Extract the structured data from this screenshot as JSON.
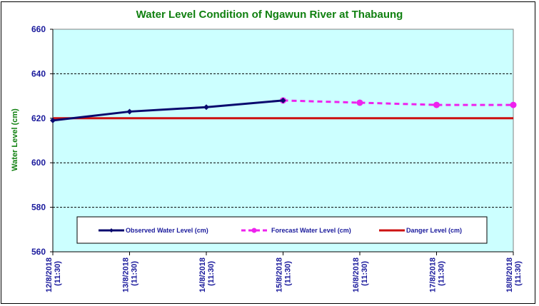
{
  "chart_data": {
    "type": "line",
    "title": "Water Level Condition of Ngawun  River at  Thabaung",
    "xlabel": "",
    "ylabel": "Water Level (cm)",
    "ylim": [
      560,
      660
    ],
    "yticks": [
      560,
      580,
      600,
      620,
      640,
      660
    ],
    "grid": "horizontal dashed",
    "x": [
      [
        "12/8/2018",
        "(11:30)"
      ],
      [
        "13/8/2018",
        "(11:30)"
      ],
      [
        "14/8/2018",
        "(11:30)"
      ],
      [
        "15/8/2018",
        "(11:30)"
      ],
      [
        "16/8/2018",
        "(11:30)"
      ],
      [
        "17/8/2018",
        "(11:30)"
      ],
      [
        "18/8/2018",
        "(11:30)"
      ]
    ],
    "series": [
      {
        "name": "Observed Water Level (cm)",
        "color": "#0a0a6e",
        "style": "solid",
        "marker": "diamond",
        "values": [
          619,
          623,
          625,
          628,
          null,
          null,
          null
        ]
      },
      {
        "name": "Forecast Water Level (cm)",
        "color": "#ee22ee",
        "style": "dashed",
        "marker": "circle",
        "values": [
          null,
          null,
          null,
          628,
          627,
          626,
          626
        ]
      },
      {
        "name": "Danger Level (cm)",
        "color": "#cc1111",
        "style": "solid",
        "marker": "none",
        "values": [
          620,
          620,
          620,
          620,
          620,
          620,
          620
        ]
      }
    ],
    "legend": "bottom-inside",
    "background": "#ccffff"
  }
}
